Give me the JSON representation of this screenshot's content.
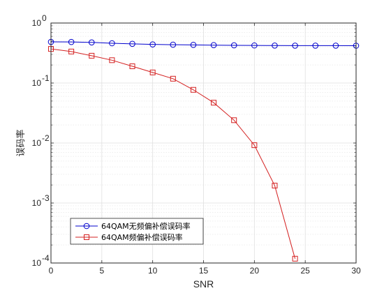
{
  "chart_data": {
    "type": "line",
    "xlabel": "SNR",
    "ylabel": "误码率",
    "yscale": "log",
    "xlim": [
      0,
      30
    ],
    "ylim": [
      0.0001,
      1
    ],
    "xticks": [
      0,
      5,
      10,
      15,
      20,
      25,
      30
    ],
    "xtick_labels": [
      "0",
      "5",
      "10",
      "15",
      "20",
      "25",
      "30"
    ],
    "yticks": [
      0.0001,
      0.001,
      0.01,
      0.1,
      1
    ],
    "ytick_labels": [
      {
        "base": "10",
        "exp": "-4"
      },
      {
        "base": "10",
        "exp": "-3"
      },
      {
        "base": "10",
        "exp": "-2"
      },
      {
        "base": "10",
        "exp": "-1"
      },
      {
        "base": "10",
        "exp": "0"
      }
    ],
    "grid": true,
    "minor_grid": true,
    "legend_position": "bottom-left",
    "series": [
      {
        "name": "64QAM无频偏补偿误码率",
        "color": "#0000CC",
        "marker": "circle",
        "x": [
          0,
          2,
          4,
          6,
          8,
          10,
          12,
          14,
          16,
          18,
          20,
          22,
          24,
          26,
          28,
          30
        ],
        "y": [
          0.485,
          0.483,
          0.475,
          0.46,
          0.45,
          0.44,
          0.435,
          0.432,
          0.428,
          0.425,
          0.423,
          0.421,
          0.42,
          0.42,
          0.42,
          0.419
        ]
      },
      {
        "name": "64QAM频偏补偿误码率",
        "color": "#D42020",
        "marker": "square",
        "x": [
          0,
          2,
          4,
          6,
          8,
          10,
          12,
          14,
          16,
          18,
          20,
          22,
          24
        ],
        "y": [
          0.37,
          0.335,
          0.285,
          0.24,
          0.19,
          0.15,
          0.118,
          0.077,
          0.047,
          0.024,
          0.0092,
          0.00195,
          0.000118
        ]
      }
    ]
  }
}
